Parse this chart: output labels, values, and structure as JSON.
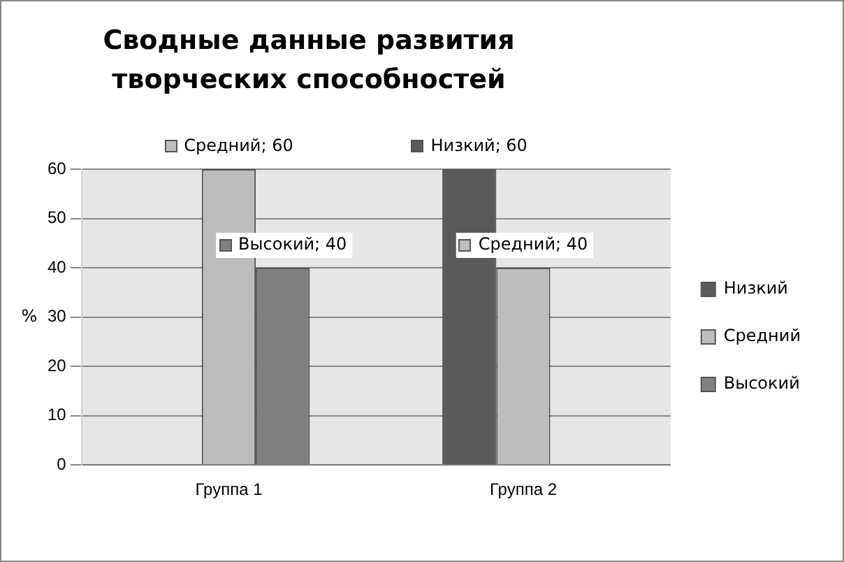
{
  "chart_data": {
    "type": "bar",
    "title": "Сводные данные развития творческих способностей",
    "ylabel": "%",
    "categories": [
      "Группа 1",
      "Группа 2"
    ],
    "series": [
      {
        "name": "Низкий",
        "color": "#5a5a5a",
        "values": [
          0,
          60
        ],
        "value_labels": [
          null,
          "Низкий; 60"
        ]
      },
      {
        "name": "Средний",
        "color": "#bdbdbd",
        "values": [
          60,
          40
        ],
        "value_labels": [
          "Средний; 60",
          "Средний; 40"
        ]
      },
      {
        "name": "Высокий",
        "color": "#808080",
        "values": [
          40,
          0
        ],
        "value_labels": [
          "Высокий; 40",
          null
        ]
      }
    ],
    "ylim": [
      0,
      60
    ],
    "yticks": [
      0,
      10,
      20,
      30,
      40,
      50,
      60
    ],
    "grid": "y",
    "legend": "right"
  }
}
